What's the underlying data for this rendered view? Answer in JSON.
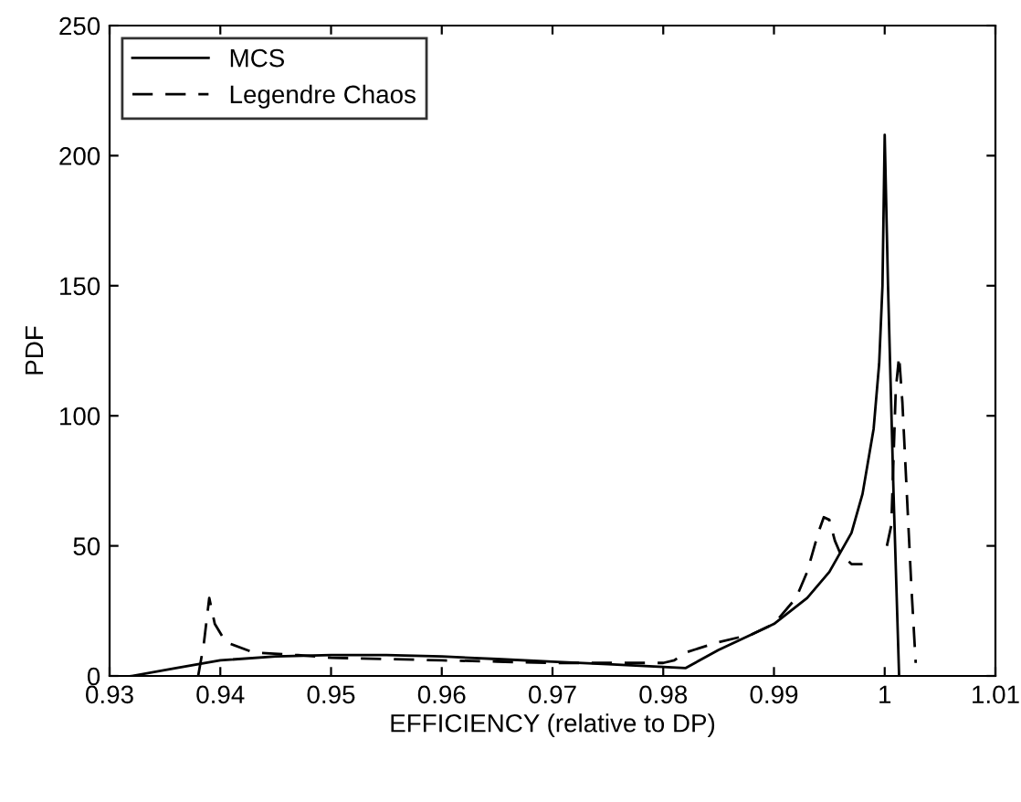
{
  "chart_data": {
    "type": "line",
    "xlabel": "EFFICIENCY (relative to DP)",
    "ylabel": "PDF",
    "xlim": [
      0.93,
      1.01
    ],
    "ylim": [
      0,
      250
    ],
    "xticks": [
      0.93,
      0.94,
      0.95,
      0.96,
      0.97,
      0.98,
      0.99,
      {
        "value": 1,
        "label": "1"
      },
      1.01
    ],
    "yticks": [
      0,
      50,
      100,
      150,
      200,
      250
    ],
    "grid": false,
    "legend": "top left",
    "series": [
      {
        "name": "MCS",
        "color": "#000000",
        "line_style": "solid",
        "x": [
          0.932,
          0.936,
          0.94,
          0.945,
          0.95,
          0.955,
          0.96,
          0.965,
          0.97,
          0.975,
          0.98,
          0.982,
          0.985,
          0.988,
          0.99,
          0.993,
          0.995,
          0.997,
          0.998,
          0.999,
          0.9995,
          0.9998,
          1.0,
          1.0003,
          1.0008,
          1.0013
        ],
        "values": [
          0,
          3,
          6,
          7.5,
          8,
          8,
          7.5,
          6.5,
          5.5,
          4.5,
          3.5,
          3,
          10,
          16,
          20,
          30,
          40,
          55,
          70,
          95,
          120,
          150,
          208,
          150,
          70,
          0
        ]
      },
      {
        "name": "Legendre Chaos",
        "color": "#000000",
        "line_style": "dashed",
        "x": [
          0.938,
          0.9385,
          0.939,
          0.9395,
          0.9405,
          0.943,
          0.947,
          0.95,
          0.955,
          0.96,
          0.965,
          0.97,
          0.975,
          0.98,
          0.981,
          0.982,
          0.985,
          0.988,
          0.99,
          0.992,
          0.993,
          0.994,
          0.9945,
          0.995,
          0.9955,
          0.996,
          0.997,
          0.998,
          null,
          1.0002,
          1.0006,
          1.001,
          1.0013,
          1.0016,
          1.002,
          1.0024,
          1.0028
        ],
        "values": [
          0,
          12,
          30,
          20,
          13,
          9,
          8,
          7,
          6.5,
          6,
          5.5,
          5,
          5,
          5,
          6,
          9,
          13,
          16,
          20,
          30,
          40,
          55,
          61,
          60,
          52,
          47,
          43,
          43,
          null,
          50,
          58,
          110,
          123,
          105,
          70,
          35,
          5
        ]
      }
    ]
  }
}
